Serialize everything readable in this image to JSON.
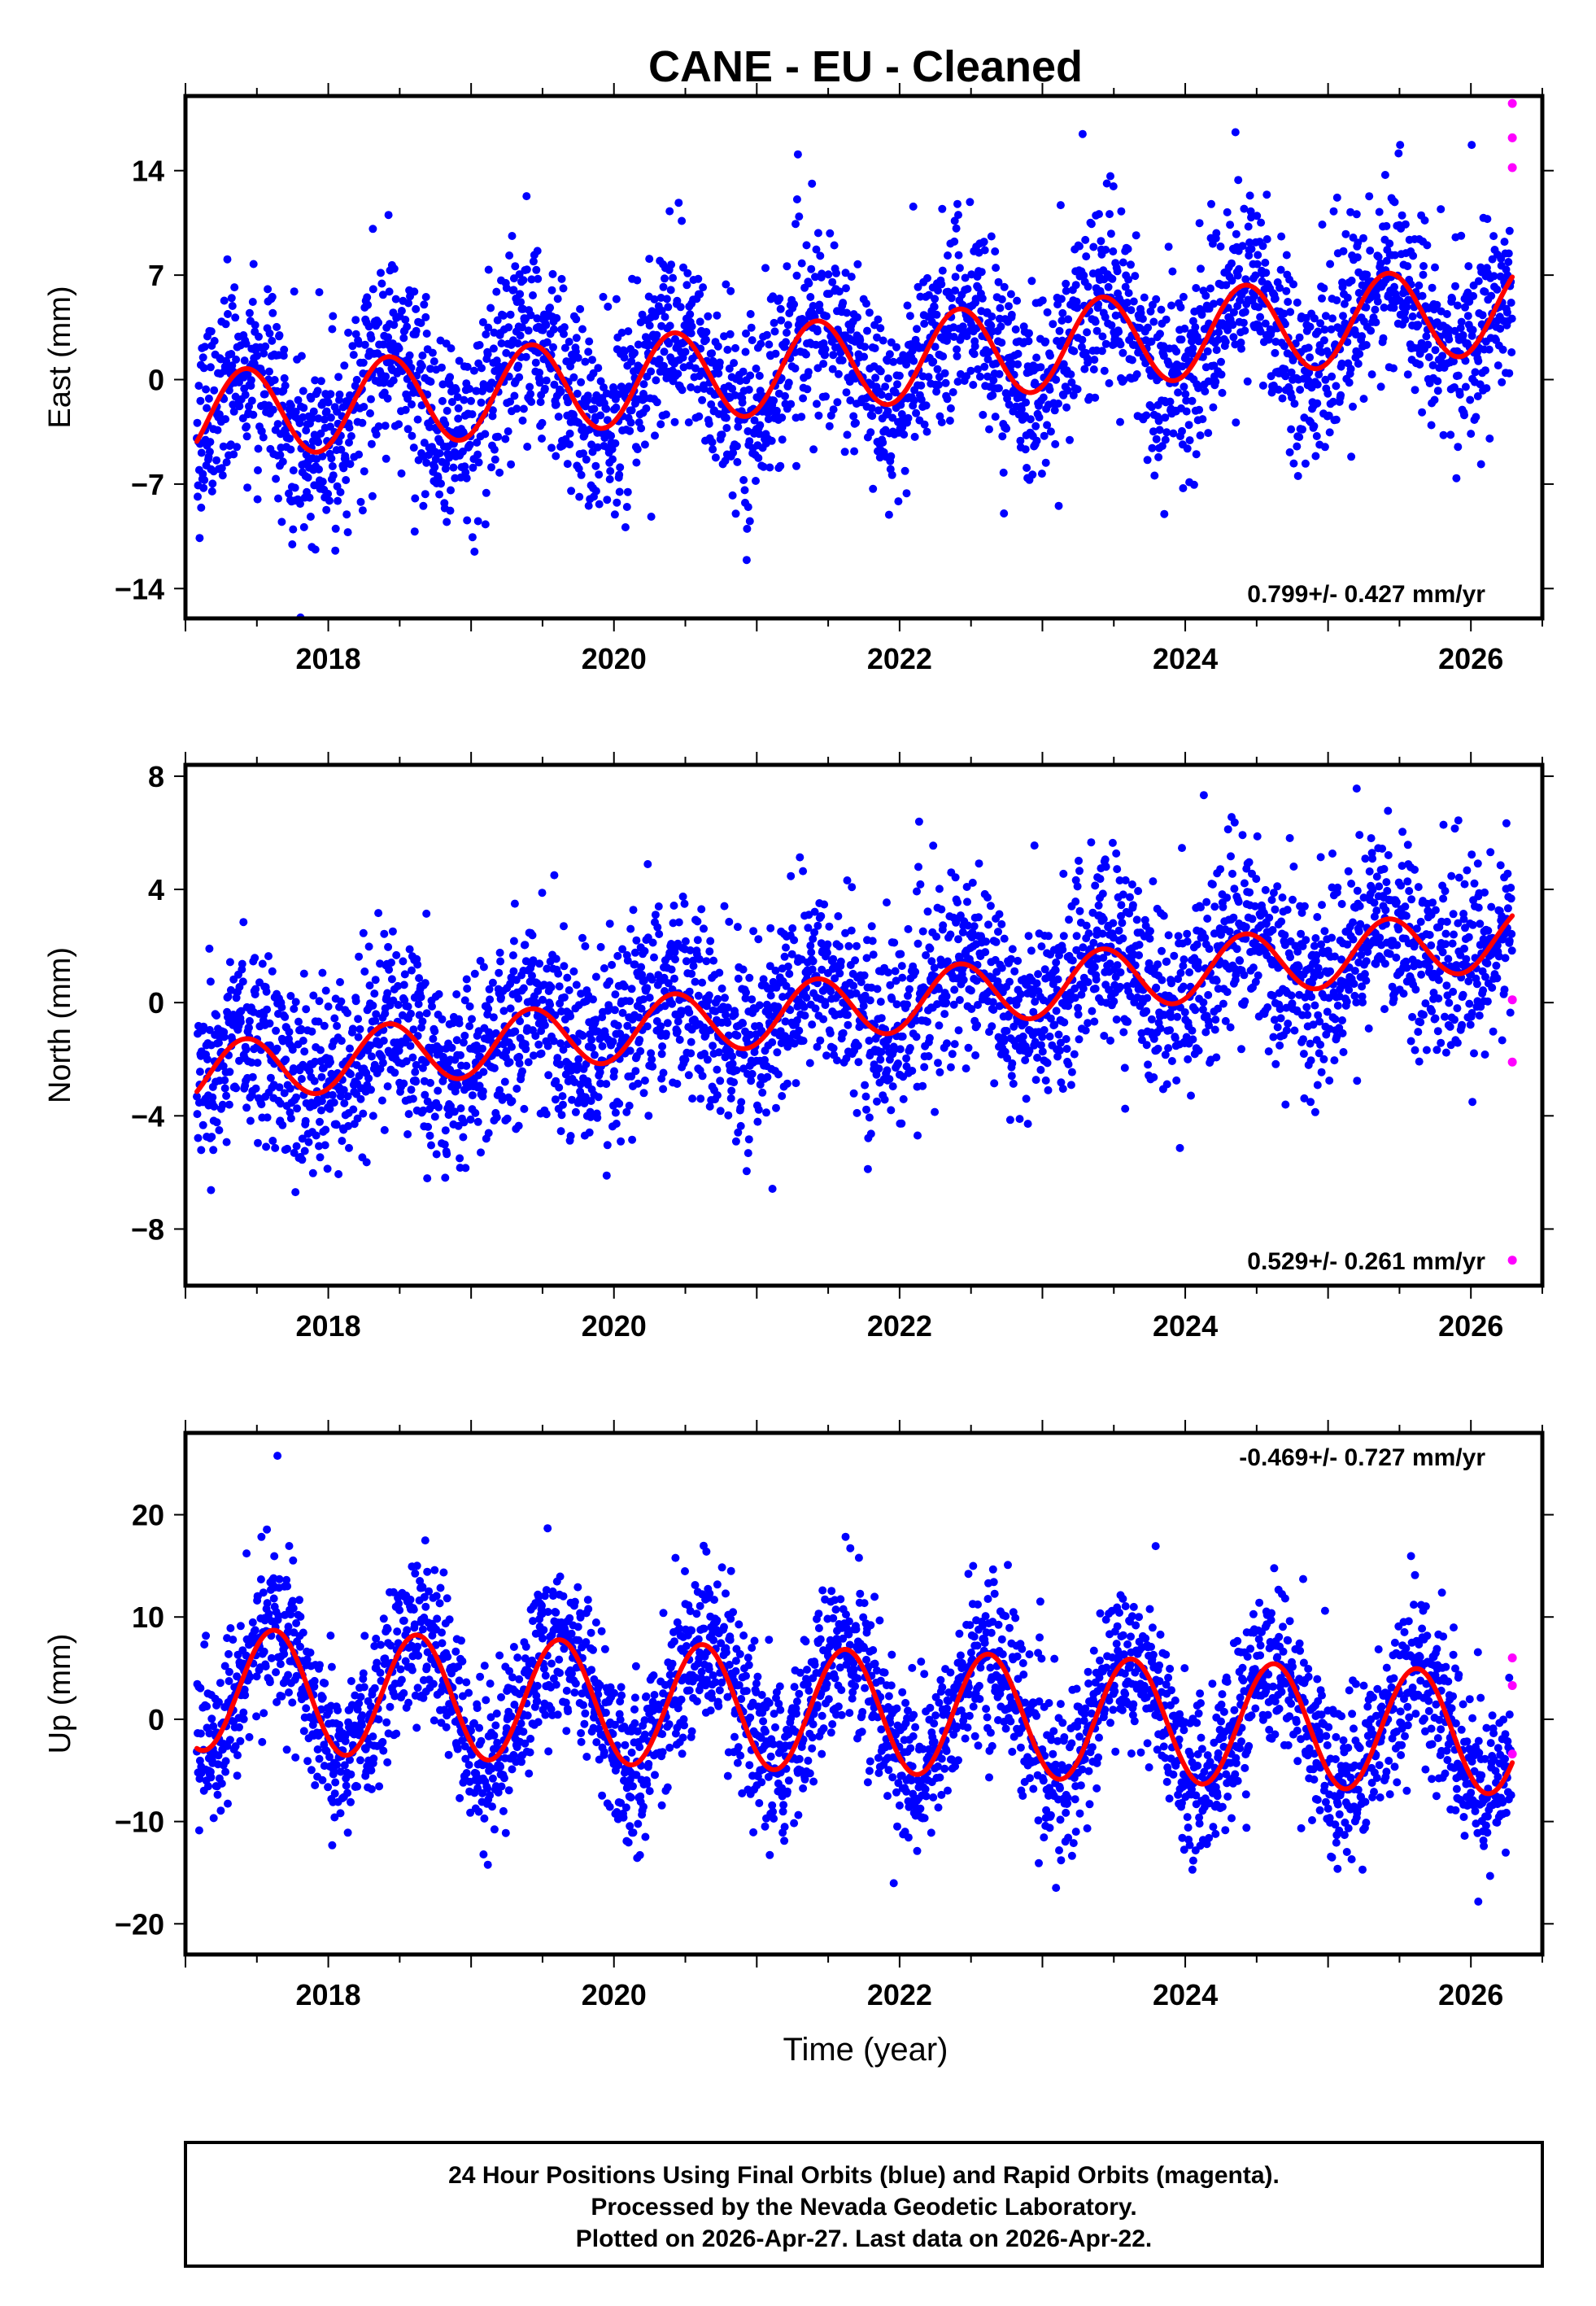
{
  "chart_data": [
    {
      "type": "scatter",
      "title": "CANE  - EU - Cleaned",
      "xlabel": "",
      "ylabel": "East (mm)",
      "xlim": [
        2017.0,
        2026.5
      ],
      "ylim": [
        -16,
        19
      ],
      "xticks": [
        2018,
        2020,
        2022,
        2024,
        2026
      ],
      "yticks": [
        -14,
        -7,
        0,
        7,
        14
      ],
      "rate_label": "0.799+/- 0.427 mm/yr",
      "model": {
        "offset": -2.6,
        "rate": 0.799,
        "amplitude": 3.0,
        "phase_peak": 0.42,
        "scatter_sd": 3.2
      },
      "series": [
        {
          "name": "Final Orbits",
          "color": "#0000ff"
        },
        {
          "name": "Rapid Orbits",
          "color": "#ff00ff",
          "x": [
            2026.29,
            2026.29,
            2026.29
          ],
          "y": [
            18.5,
            16.2,
            14.2
          ]
        },
        {
          "name": "Model Fit",
          "color": "#ff0000"
        }
      ]
    },
    {
      "type": "scatter",
      "title": "",
      "xlabel": "",
      "ylabel": "North (mm)",
      "xlim": [
        2017.0,
        2026.5
      ],
      "ylim": [
        -10,
        8.4
      ],
      "xticks": [
        2018,
        2020,
        2022,
        2024,
        2026
      ],
      "yticks": [
        -8,
        -4,
        0,
        4,
        8
      ],
      "rate_label": "0.529+/- 0.261 mm/yr",
      "model": {
        "offset": -2.6,
        "rate": 0.529,
        "amplitude": 1.1,
        "phase_peak": 0.42,
        "scatter_sd": 1.7
      },
      "series": [
        {
          "name": "Final Orbits",
          "color": "#0000ff"
        },
        {
          "name": "Rapid Orbits",
          "color": "#ff00ff",
          "x": [
            2026.29,
            2026.29,
            2026.29
          ],
          "y": [
            0.1,
            -2.1,
            -9.1
          ]
        },
        {
          "name": "Model Fit",
          "color": "#ff0000"
        }
      ]
    },
    {
      "type": "scatter",
      "title": "",
      "xlabel": "Time (year)",
      "ylabel": "Up (mm)",
      "xlim": [
        2017.0,
        2026.5
      ],
      "ylim": [
        -23,
        28
      ],
      "xticks": [
        2018,
        2020,
        2022,
        2024,
        2026
      ],
      "yticks": [
        -20,
        -10,
        0,
        10,
        20
      ],
      "rate_label": "-0.469+/- 0.727 mm/yr",
      "model": {
        "offset": 3.0,
        "rate": -0.469,
        "amplitude": 6.0,
        "phase_peak": 0.62,
        "scatter_sd": 4.0
      },
      "series": [
        {
          "name": "Final Orbits",
          "color": "#0000ff"
        },
        {
          "name": "Rapid Orbits",
          "color": "#ff00ff",
          "x": [
            2026.29,
            2026.29,
            2026.29
          ],
          "y": [
            6.0,
            3.3,
            -3.4
          ]
        },
        {
          "name": "Model Fit",
          "color": "#ff0000"
        }
      ]
    }
  ],
  "footer": {
    "line1": "24 Hour Positions Using Final Orbits (blue) and Rapid Orbits (magenta).",
    "line2": "Processed by the Nevada Geodetic Laboratory.",
    "line3": "Plotted on 2026-Apr-27. Last data on 2026-Apr-22."
  },
  "colors": {
    "final": "#0000ff",
    "rapid": "#ff00ff",
    "fit": "#ff0000",
    "frame": "#000000"
  }
}
